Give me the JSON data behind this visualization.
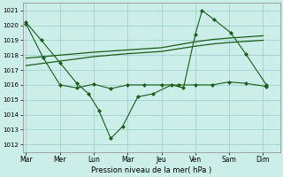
{
  "background_color": "#cceee8",
  "grid_color": "#99cccc",
  "line_color": "#1a5c1a",
  "xlabel": "Pression niveau de la mer( hPa )",
  "ylim": [
    1011.5,
    1021.5
  ],
  "yticks": [
    1012,
    1013,
    1014,
    1015,
    1016,
    1017,
    1018,
    1019,
    1020,
    1021
  ],
  "x_labels": [
    "Mar",
    "Mer",
    "Lun",
    "Mar",
    "Jeu",
    "Ven",
    "Sam",
    "Dim"
  ],
  "x_positions": [
    0,
    1,
    2,
    3,
    4,
    5,
    6,
    7
  ],
  "xlim": [
    -0.1,
    7.5
  ],
  "series1_x": [
    0,
    0.45,
    1.0,
    1.5,
    1.85,
    2.15,
    2.5,
    2.85,
    3.3,
    3.75,
    4.3,
    4.65,
    5.0,
    5.2,
    5.55,
    6.05,
    6.5,
    7.1
  ],
  "series1_y": [
    1020.2,
    1019.0,
    1017.5,
    1016.1,
    1015.4,
    1014.3,
    1012.4,
    1013.2,
    1015.2,
    1015.4,
    1016.0,
    1015.8,
    1019.4,
    1021.0,
    1020.4,
    1019.5,
    1018.05,
    1016.0
  ],
  "series2_x": [
    0,
    1,
    2,
    3,
    4,
    5,
    5.5,
    6,
    7
  ],
  "series2_y": [
    1017.8,
    1018.0,
    1018.2,
    1018.35,
    1018.5,
    1018.9,
    1019.05,
    1019.15,
    1019.3
  ],
  "series3_x": [
    0,
    1,
    2,
    3,
    4,
    5,
    5.5,
    6,
    7
  ],
  "series3_y": [
    1017.3,
    1017.6,
    1017.9,
    1018.1,
    1018.25,
    1018.6,
    1018.75,
    1018.85,
    1019.0
  ],
  "series4_x": [
    0,
    0.5,
    1.0,
    1.5,
    2.0,
    2.5,
    3.0,
    3.5,
    4.0,
    4.5,
    5.0,
    5.5,
    6.0,
    6.5,
    7.1
  ],
  "series4_y": [
    1020.1,
    1017.85,
    1016.0,
    1015.8,
    1016.05,
    1015.75,
    1016.0,
    1016.0,
    1016.0,
    1016.0,
    1016.0,
    1016.0,
    1016.2,
    1016.1,
    1015.9
  ]
}
